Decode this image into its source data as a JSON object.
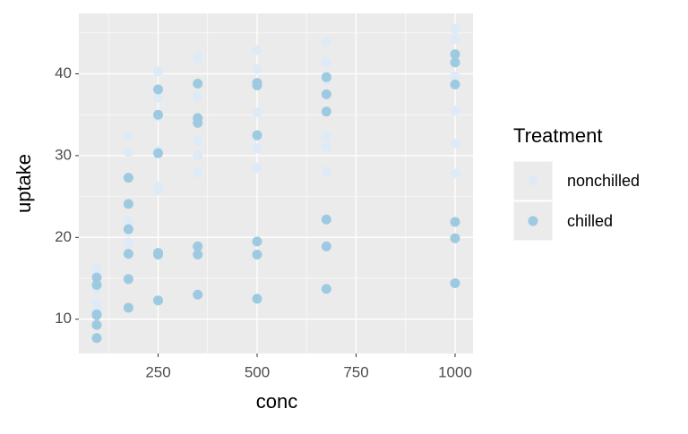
{
  "chart_data": {
    "type": "scatter",
    "x_label": "conc",
    "y_label": "uptake",
    "xlim": [
      49.75,
      1045.25
    ],
    "xticks": [
      250,
      500,
      750,
      1000
    ],
    "ylim": [
      5.81,
      47.39
    ],
    "yticks": [
      10,
      20,
      30,
      40
    ],
    "grid": true,
    "legend_title": "Treatment",
    "legend_position": "right",
    "series": [
      {
        "name": "nonchilled",
        "color": "#deebf7",
        "x": [
          95,
          175,
          250,
          350,
          500,
          675,
          1000,
          95,
          175,
          250,
          350,
          500,
          675,
          1000,
          95,
          175,
          250,
          350,
          500,
          675,
          1000,
          95,
          175,
          250,
          350,
          500,
          675,
          1000,
          95,
          175,
          250,
          350,
          500,
          675,
          1000,
          95,
          175,
          250,
          350,
          500,
          675,
          1000
        ],
        "values": [
          16.0,
          30.4,
          34.8,
          37.2,
          35.3,
          39.2,
          39.7,
          13.6,
          27.3,
          37.1,
          41.8,
          40.6,
          41.4,
          44.3,
          16.2,
          32.4,
          40.3,
          42.1,
          42.9,
          43.9,
          45.5,
          10.6,
          19.2,
          26.2,
          30.0,
          30.9,
          32.4,
          35.5,
          12.0,
          22.0,
          30.6,
          31.8,
          32.4,
          31.1,
          31.5,
          11.3,
          19.4,
          25.8,
          27.9,
          28.5,
          28.1,
          27.8
        ]
      },
      {
        "name": "chilled",
        "color": "#9ecae1",
        "x": [
          95,
          175,
          250,
          350,
          500,
          675,
          1000,
          95,
          175,
          250,
          350,
          500,
          675,
          1000,
          95,
          175,
          250,
          350,
          500,
          675,
          1000,
          95,
          175,
          250,
          350,
          500,
          675,
          1000,
          95,
          175,
          250,
          350,
          500,
          675,
          1000,
          95,
          175,
          250,
          350,
          500,
          675,
          1000
        ],
        "values": [
          14.2,
          24.1,
          30.3,
          34.6,
          32.5,
          35.4,
          38.7,
          9.3,
          27.3,
          35.0,
          38.8,
          38.6,
          37.5,
          42.4,
          15.1,
          21.0,
          38.1,
          34.0,
          38.9,
          39.6,
          41.4,
          10.5,
          14.9,
          18.1,
          18.9,
          19.5,
          22.2,
          21.9,
          7.7,
          11.4,
          12.3,
          13.0,
          12.5,
          13.7,
          14.4,
          10.6,
          18.0,
          17.9,
          17.9,
          17.9,
          18.9,
          19.9
        ]
      }
    ]
  }
}
